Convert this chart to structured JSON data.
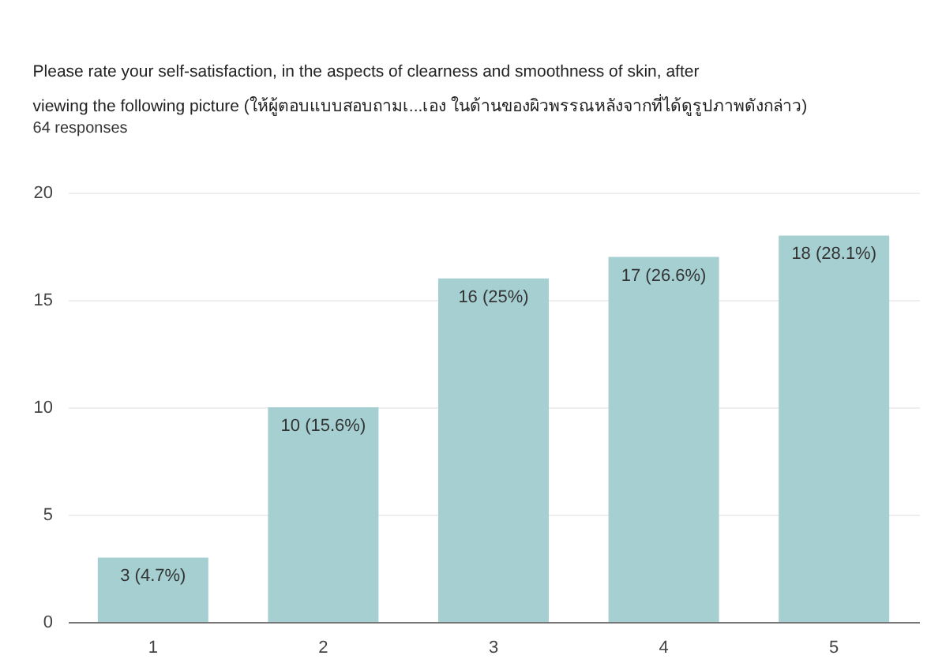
{
  "chart_data": {
    "type": "bar",
    "title": [
      "Please rate your self-satisfaction, in the aspects of clearness and smoothness of skin, after",
      "viewing the following picture (ให้ผู้ตอบแบบสอบถามเ...เอง ในด้านของผิวพรรณหลังจากที่ได้ดูรูปภาพดังกล่าว)"
    ],
    "subtitle": "64 responses",
    "categories": [
      "1",
      "2",
      "3",
      "4",
      "5"
    ],
    "values": [
      3,
      10,
      16,
      17,
      18
    ],
    "color": "#a5cfd1",
    "value_labels": [
      "3 (4.7%)",
      "10 (15.6%)",
      "16 (25%)",
      "17 (26.6%)",
      "18 (28.1%)"
    ],
    "ylim": [
      0,
      20
    ],
    "yticks": [
      0,
      5,
      10,
      15,
      20
    ],
    "grid": "y"
  }
}
